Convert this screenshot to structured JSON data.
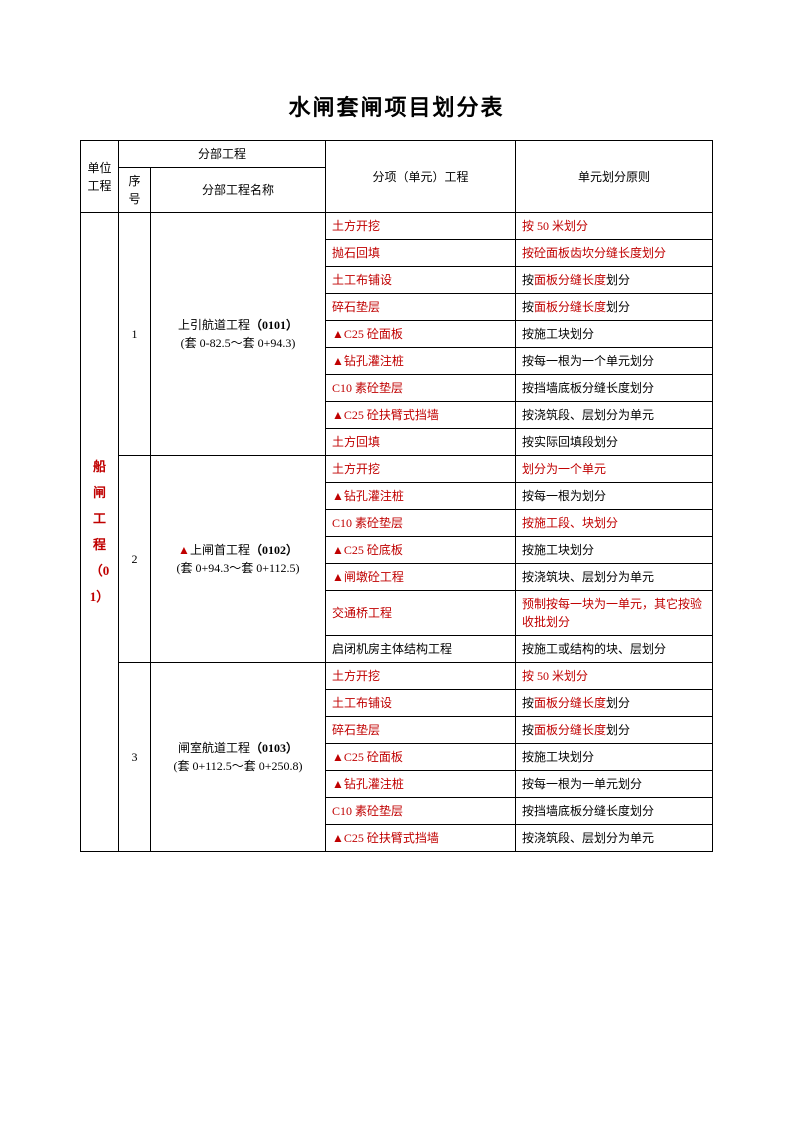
{
  "title": "水闸套闸项目划分表",
  "header": {
    "unit": "单位工程",
    "section": "分部工程",
    "seq": "序号",
    "sectionName": "分部工程名称",
    "item": "分项（单元）工程",
    "principle": "单元划分原则"
  },
  "unitProject": {
    "nameLines": [
      "船",
      "闸",
      "工",
      "程",
      "（01）"
    ]
  },
  "sections": [
    {
      "seq": "1",
      "name_pre": "上引航道工程",
      "name_bold": "（0101）",
      "name_range": "(套 0-82.5～套 0+94.3)",
      "name_mark": false,
      "rows": [
        {
          "item": [
            {
              "t": "土方开挖",
              "red": true
            }
          ],
          "principle": [
            {
              "t": "按",
              "red": true
            },
            {
              "t": " 50 ",
              "red": true
            },
            {
              "t": "米划分",
              "red": true
            }
          ]
        },
        {
          "item": [
            {
              "t": "抛石回填",
              "red": true
            }
          ],
          "principle": [
            {
              "t": "按砼面板齿坎分缝长度划分",
              "red": true
            }
          ]
        },
        {
          "item": [
            {
              "t": "土工布铺设",
              "red": true
            }
          ],
          "principle": [
            {
              "t": "按",
              "red": false
            },
            {
              "t": "面板分缝长度",
              "red": true
            },
            {
              "t": "划分",
              "red": false
            }
          ]
        },
        {
          "item": [
            {
              "t": "碎石垫层",
              "red": true
            }
          ],
          "principle": [
            {
              "t": "按",
              "red": false
            },
            {
              "t": "面板分缝长度",
              "red": true
            },
            {
              "t": "划分",
              "red": false
            }
          ]
        },
        {
          "item": [
            {
              "t": "▲C25 砼面板",
              "red": true
            }
          ],
          "principle": [
            {
              "t": "按施工块划分",
              "red": false
            }
          ]
        },
        {
          "item": [
            {
              "t": "▲钻孔灌注桩",
              "red": true
            }
          ],
          "principle": [
            {
              "t": "按每一根为一个单元划分",
              "red": false
            }
          ]
        },
        {
          "item": [
            {
              "t": "C10 素砼垫层",
              "red": true
            }
          ],
          "principle": [
            {
              "t": "按挡墙底板分缝长度划分",
              "red": false
            }
          ]
        },
        {
          "item": [
            {
              "t": "▲C25 砼扶臂式挡墙",
              "red": true
            }
          ],
          "principle": [
            {
              "t": "按浇筑段、层划分为单元",
              "red": false
            }
          ]
        },
        {
          "item": [
            {
              "t": "土方回填",
              "red": true
            }
          ],
          "principle": [
            {
              "t": "按实际回填段划分",
              "red": false
            }
          ]
        }
      ]
    },
    {
      "seq": "2",
      "name_pre": "上闸首工程",
      "name_bold": "（0102）",
      "name_range": "(套 0+94.3～套 0+112.5)",
      "name_mark": true,
      "rows": [
        {
          "item": [
            {
              "t": "土方开挖",
              "red": true
            }
          ],
          "principle": [
            {
              "t": "划分为一个单元",
              "red": true
            }
          ]
        },
        {
          "item": [
            {
              "t": "▲钻孔灌注桩",
              "red": true
            }
          ],
          "principle": [
            {
              "t": "按每一根为划分",
              "red": false
            }
          ]
        },
        {
          "item": [
            {
              "t": "C10 素砼垫层",
              "red": true
            }
          ],
          "principle": [
            {
              "t": "按施工段、块划分",
              "red": true
            }
          ]
        },
        {
          "item": [
            {
              "t": "▲C25 砼底板",
              "red": true
            }
          ],
          "principle": [
            {
              "t": "按施工块划分",
              "red": false
            }
          ]
        },
        {
          "item": [
            {
              "t": "▲闸墩砼工程",
              "red": true
            }
          ],
          "principle": [
            {
              "t": "按浇筑块、层划分为单元",
              "red": false
            }
          ]
        },
        {
          "item": [
            {
              "t": "交通桥工程",
              "red": true
            }
          ],
          "principle": [
            {
              "t": "预制按每一块为一单元，其它按验收批划分",
              "red": true
            }
          ]
        },
        {
          "item": [
            {
              "t": "启闭机房主体结构工程",
              "red": false
            }
          ],
          "principle": [
            {
              "t": "按施工或结构的块、层划分",
              "red": false
            }
          ]
        }
      ]
    },
    {
      "seq": "3",
      "name_pre": "闸室航道工程",
      "name_bold": "（0103）",
      "name_range": "(套 0+112.5～套 0+250.8)",
      "name_mark": false,
      "rows": [
        {
          "item": [
            {
              "t": "土方开挖",
              "red": true
            }
          ],
          "principle": [
            {
              "t": "按",
              "red": true
            },
            {
              "t": " 50 ",
              "red": true
            },
            {
              "t": "米划分",
              "red": true
            }
          ]
        },
        {
          "item": [
            {
              "t": "土工布铺设",
              "red": true
            }
          ],
          "principle": [
            {
              "t": "按",
              "red": false
            },
            {
              "t": "面板分缝长度",
              "red": true
            },
            {
              "t": "划分",
              "red": false
            }
          ]
        },
        {
          "item": [
            {
              "t": "碎石垫层",
              "red": true
            }
          ],
          "principle": [
            {
              "t": "按",
              "red": false
            },
            {
              "t": "面板分缝长度",
              "red": true
            },
            {
              "t": "划分",
              "red": false
            }
          ]
        },
        {
          "item": [
            {
              "t": "▲C25 砼面板",
              "red": true
            }
          ],
          "principle": [
            {
              "t": "按施工块划分",
              "red": false
            }
          ]
        },
        {
          "item": [
            {
              "t": "▲钻孔灌注桩",
              "red": true
            }
          ],
          "principle": [
            {
              "t": "按每一根为一单元划分",
              "red": false
            }
          ]
        },
        {
          "item": [
            {
              "t": "C10 素砼垫层",
              "red": true
            }
          ],
          "principle": [
            {
              "t": "按挡墙底板分缝长度划分",
              "red": false
            }
          ]
        },
        {
          "item": [
            {
              "t": "▲C25 砼扶臂式挡墙",
              "red": true
            }
          ],
          "principle": [
            {
              "t": "按浇筑段、层划分为单元",
              "red": false
            }
          ]
        }
      ]
    }
  ]
}
